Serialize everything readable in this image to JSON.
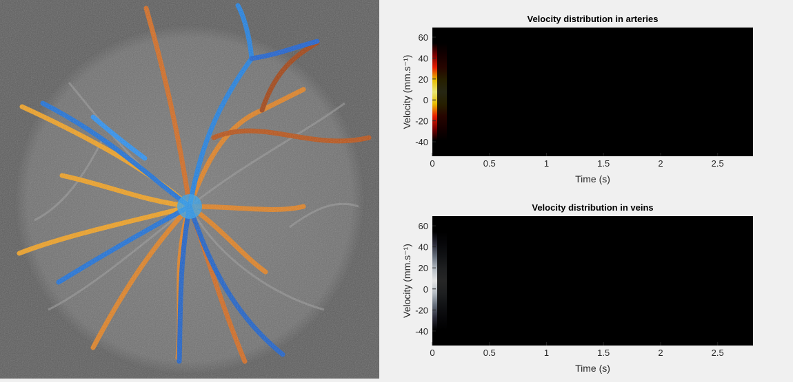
{
  "chart_data": [
    {
      "type": "heatmap",
      "title": "Velocity distribution in arteries",
      "xlabel": "Time (s)",
      "ylabel": "Velocity (mm.s⁻¹)",
      "colormap": "hot",
      "xlim": [
        0,
        2.81
      ],
      "xticks": [
        0,
        0.5,
        1,
        1.5,
        2,
        2.5
      ],
      "ylim": [
        -53.8,
        69.2
      ],
      "yticks": [
        -40,
        -20,
        0,
        20,
        40,
        60
      ]
    },
    {
      "type": "heatmap",
      "title": "Velocity distribution in veins",
      "xlabel": "Time (s)",
      "ylabel": "Velocity (mm.s⁻¹)",
      "colormap": "bone",
      "xlim": [
        0,
        2.81
      ],
      "xticks": [
        0,
        0.5,
        1,
        1.5,
        2,
        2.5
      ],
      "ylim": [
        -53.8,
        69.2
      ],
      "yticks": [
        -40,
        -20,
        0,
        20,
        40,
        60
      ]
    }
  ]
}
